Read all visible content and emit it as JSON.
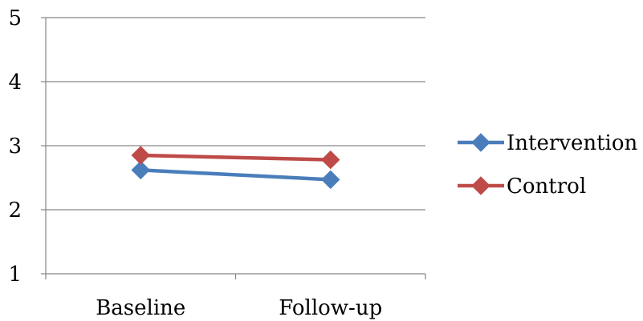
{
  "chart_data": {
    "type": "line",
    "categories": [
      "Baseline",
      "Follow-up"
    ],
    "series": [
      {
        "name": "Intervention",
        "values": [
          2.62,
          2.47
        ],
        "color": "#4A7EBB",
        "marker": "diamond"
      },
      {
        "name": "Control",
        "values": [
          2.85,
          2.78
        ],
        "color": "#BE4B48",
        "marker": "diamond"
      }
    ],
    "title": "",
    "xlabel": "",
    "ylabel": "",
    "ylim": [
      1,
      5
    ],
    "yticks": [
      1,
      2,
      3,
      4,
      5
    ],
    "grid": true,
    "legend": "right"
  }
}
